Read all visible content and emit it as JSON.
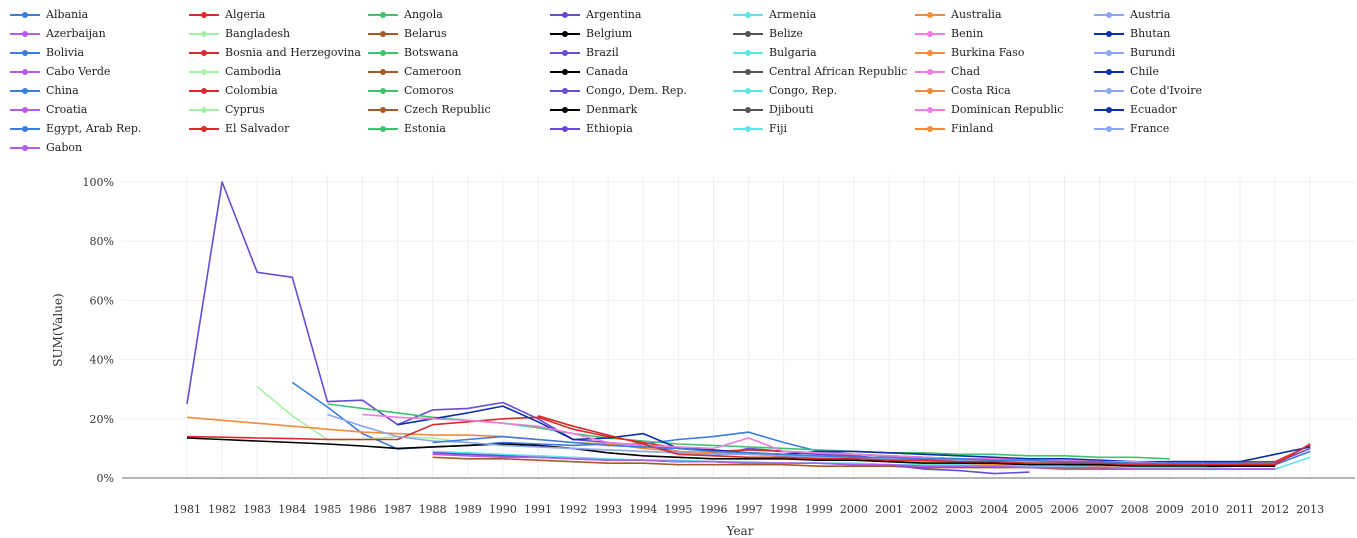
{
  "legend": {
    "items": [
      {
        "label": "Albania",
        "color": "#3b7ddd"
      },
      {
        "label": "Algeria",
        "color": "#d92b2b"
      },
      {
        "label": "Angola",
        "color": "#3ec46d"
      },
      {
        "label": "Argentina",
        "color": "#6a4bd6"
      },
      {
        "label": "Armenia",
        "color": "#5ee6e6"
      },
      {
        "label": "Australia",
        "color": "#f08c3a"
      },
      {
        "label": "Austria",
        "color": "#8aa8f0"
      },
      {
        "label": "Azerbaijan",
        "color": "#b35ce8"
      },
      {
        "label": "Bangladesh",
        "color": "#a8f0a8"
      },
      {
        "label": "Belarus",
        "color": "#a65a2a"
      },
      {
        "label": "Belgium",
        "color": "#000000"
      },
      {
        "label": "Belize",
        "color": "#555555"
      },
      {
        "label": "Benin",
        "color": "#f07de0"
      },
      {
        "label": "Bhutan",
        "color": "#0a2fa8"
      },
      {
        "label": "Bolivia",
        "color": "#3b7ddd"
      },
      {
        "label": "Bosnia and Herzegovina",
        "color": "#d92b2b"
      },
      {
        "label": "Botswana",
        "color": "#3ec46d"
      },
      {
        "label": "Brazil",
        "color": "#6a4bd6"
      },
      {
        "label": "Bulgaria",
        "color": "#5ee6e6"
      },
      {
        "label": "Burkina Faso",
        "color": "#f08c3a"
      },
      {
        "label": "Burundi",
        "color": "#8aa8f0"
      },
      {
        "label": "Cabo Verde",
        "color": "#b35ce8"
      },
      {
        "label": "Cambodia",
        "color": "#a8f0a8"
      },
      {
        "label": "Cameroon",
        "color": "#a65a2a"
      },
      {
        "label": "Canada",
        "color": "#000000"
      },
      {
        "label": "Central African Republic",
        "color": "#555555"
      },
      {
        "label": "Chad",
        "color": "#f07de0"
      },
      {
        "label": "Chile",
        "color": "#0a2fa8"
      },
      {
        "label": "China",
        "color": "#3b7ddd"
      },
      {
        "label": "Colombia",
        "color": "#d92b2b"
      },
      {
        "label": "Comoros",
        "color": "#3ec46d"
      },
      {
        "label": "Congo, Dem. Rep.",
        "color": "#6a4bd6"
      },
      {
        "label": "Congo, Rep.",
        "color": "#5ee6e6"
      },
      {
        "label": "Costa Rica",
        "color": "#f08c3a"
      },
      {
        "label": "Cote d'Ivoire",
        "color": "#8aa8f0"
      },
      {
        "label": "Croatia",
        "color": "#b35ce8"
      },
      {
        "label": "Cyprus",
        "color": "#a8f0a8"
      },
      {
        "label": "Czech Republic",
        "color": "#a65a2a"
      },
      {
        "label": "Denmark",
        "color": "#000000"
      },
      {
        "label": "Djibouti",
        "color": "#555555"
      },
      {
        "label": "Dominican Republic",
        "color": "#f07de0"
      },
      {
        "label": "Ecuador",
        "color": "#0a2fa8"
      },
      {
        "label": "Egypt, Arab Rep.",
        "color": "#3b7ddd"
      },
      {
        "label": "El Salvador",
        "color": "#d92b2b"
      },
      {
        "label": "Estonia",
        "color": "#3ec46d"
      },
      {
        "label": "Ethiopia",
        "color": "#6a4bd6"
      },
      {
        "label": "Fiji",
        "color": "#5ee6e6"
      },
      {
        "label": "Finland",
        "color": "#f08c3a"
      },
      {
        "label": "France",
        "color": "#8aa8f0"
      },
      {
        "label": "Gabon",
        "color": "#b35ce8"
      }
    ]
  },
  "chart_data": {
    "type": "line",
    "xlabel": "Year",
    "ylabel": "SUM(Value)",
    "ylim": [
      0,
      100
    ],
    "yticks": [
      "0%",
      "20%",
      "40%",
      "60%",
      "80%",
      "100%"
    ],
    "x": [
      1981,
      1982,
      1983,
      1984,
      1985,
      1986,
      1987,
      1988,
      1989,
      1990,
      1991,
      1992,
      1993,
      1994,
      1995,
      1996,
      1997,
      1998,
      1999,
      2000,
      2001,
      2002,
      2003,
      2004,
      2005,
      2006,
      2007,
      2008,
      2009,
      2010,
      2011,
      2012,
      2013
    ],
    "grid": true,
    "series": [
      {
        "name": "Argentina",
        "color": "#6a4bd6",
        "values": [
          25,
          100,
          69.5,
          67.8,
          25.8,
          26.3,
          18,
          23,
          23.5,
          25.5,
          20,
          13,
          12,
          11,
          9,
          7.5,
          10,
          9,
          8,
          7.5,
          6.5,
          6,
          5.5,
          5,
          5,
          5.5,
          5,
          4.5,
          4.5,
          5,
          5,
          5,
          10
        ]
      },
      {
        "name": "Bolivia",
        "color": "#3b7ddd",
        "values": [
          12.5,
          null,
          null,
          32.3,
          24,
          15,
          9.8,
          10.5,
          11,
          12,
          11.5,
          11,
          11.5,
          11.5,
          13,
          14,
          15.5,
          12,
          9,
          8,
          7.5,
          7,
          6.5,
          6,
          5.5,
          5,
          4.5,
          4,
          4,
          4.5,
          4.5,
          4.5,
          9
        ]
      },
      {
        "name": "Bangladesh",
        "color": "#a8f0a8",
        "values": [
          null,
          null,
          30.8,
          21,
          13,
          13,
          14,
          13.5,
          12,
          11,
          10.5,
          10,
          9.5,
          9,
          8.5,
          8,
          8,
          7.5,
          7,
          7,
          6.5,
          6,
          6,
          5.5,
          5.5,
          5.5,
          5,
          5,
          5,
          5,
          5,
          5,
          null
        ]
      },
      {
        "name": "Australia",
        "color": "#f08c3a",
        "values": [
          20.5,
          19.5,
          18.5,
          17.5,
          16.5,
          15.5,
          15,
          14.5,
          14.5,
          14,
          13,
          12,
          11.5,
          10,
          9,
          8.5,
          8,
          7.5,
          7,
          6.5,
          6,
          5.5,
          5,
          4.5,
          4.5,
          4,
          4,
          3.5,
          3.5,
          3.5,
          3,
          3,
          null
        ]
      },
      {
        "name": "Angola",
        "color": "#3ec46d",
        "values": [
          null,
          null,
          null,
          null,
          25,
          23.5,
          22,
          20.5,
          19.5,
          18.5,
          17,
          15,
          13.5,
          12.5,
          11.5,
          11,
          10.5,
          10,
          9.5,
          9,
          8.5,
          8.5,
          8,
          8,
          7.5,
          7.5,
          7,
          7,
          6.5,
          null,
          null,
          null,
          null
        ]
      },
      {
        "name": "Algeria",
        "color": "#d92b2b",
        "values": [
          14,
          13.8,
          13.5,
          13.3,
          13,
          13,
          13,
          18,
          19,
          20,
          20.5,
          16.5,
          14,
          12,
          10,
          9,
          9.5,
          9,
          8.5,
          8,
          7.5,
          7,
          6.5,
          6,
          6,
          6,
          5.5,
          5,
          5.5,
          5.5,
          5.5,
          5.5,
          11
        ]
      },
      {
        "name": "Belgium",
        "color": "#000000",
        "values": [
          13.5,
          13,
          12.5,
          12,
          11.5,
          10.8,
          10,
          10.5,
          11,
          11.5,
          11,
          10,
          8.5,
          7.5,
          7,
          6.5,
          6.5,
          6.5,
          6,
          6,
          5.5,
          5,
          5,
          5,
          4.5,
          4.5,
          4.5,
          4,
          4,
          4,
          4,
          4,
          null
        ]
      },
      {
        "name": "Chile",
        "color": "#0a2fa8",
        "values": [
          null,
          null,
          null,
          null,
          null,
          null,
          18,
          20,
          22,
          24.3,
          19,
          13,
          13.5,
          15,
          10,
          9.5,
          8.5,
          8,
          9,
          9,
          8.5,
          8,
          7.5,
          7,
          6.5,
          6.5,
          6,
          5.5,
          5.5,
          5.5,
          5.5,
          8,
          10.5
        ]
      },
      {
        "name": "Chad",
        "color": "#f07de0",
        "values": [
          null,
          null,
          null,
          null,
          null,
          21.5,
          20.5,
          20,
          19.5,
          18.5,
          17.5,
          15,
          12,
          11,
          10.5,
          10,
          13.5,
          9,
          8.5,
          8,
          7.5,
          7,
          6.5,
          6.5,
          6,
          6,
          5.5,
          5.5,
          5,
          5,
          5,
          5,
          null
        ]
      },
      {
        "name": "Cote d'Ivoire",
        "color": "#8aa8f0",
        "values": [
          null,
          null,
          null,
          null,
          21.5,
          17.5,
          14,
          12.5,
          12,
          11,
          10.5,
          10,
          9.5,
          9,
          8.5,
          8,
          8,
          7.5,
          7,
          7,
          6.5,
          6.5,
          6,
          6,
          5.5,
          5.5,
          5.5,
          5,
          5,
          5,
          4.5,
          4.5,
          null
        ]
      },
      {
        "name": "Cameroon",
        "color": "#a65a2a",
        "values": [
          null,
          null,
          null,
          null,
          null,
          null,
          null,
          7,
          6.5,
          6.5,
          6,
          5.5,
          5,
          5,
          4.5,
          4.5,
          4.5,
          4.5,
          4,
          4,
          4,
          3.5,
          3.5,
          3.5,
          3.5,
          3,
          3,
          3,
          3,
          3,
          3,
          3,
          null
        ]
      },
      {
        "name": "Congo, Rep.",
        "color": "#5ee6e6",
        "values": [
          null,
          null,
          null,
          null,
          null,
          null,
          null,
          9,
          8.5,
          8,
          7.5,
          7,
          6.5,
          6,
          6,
          5.5,
          5.5,
          5,
          5,
          5,
          4.5,
          4.5,
          4.5,
          4,
          4,
          4,
          3.5,
          3.5,
          3.5,
          3.5,
          3,
          3,
          7
        ]
      },
      {
        "name": "Congo, Dem. Rep.",
        "color": "#6a4bd6",
        "values": [
          null,
          null,
          null,
          null,
          null,
          null,
          null,
          8.5,
          8,
          7.5,
          7,
          6.5,
          6,
          6,
          5.5,
          5.5,
          5,
          5,
          5,
          4.5,
          4.5,
          3,
          2.5,
          1.5,
          2,
          null,
          null,
          null,
          null,
          null,
          null,
          null,
          null
        ]
      },
      {
        "name": "Croatia",
        "color": "#b35ce8",
        "values": [
          null,
          null,
          null,
          null,
          null,
          null,
          null,
          8,
          7.5,
          7,
          7,
          6.5,
          6,
          6,
          5.5,
          5.5,
          5,
          5,
          5,
          4.5,
          4.5,
          4,
          4,
          4,
          3.5,
          3.5,
          3.5,
          3,
          3,
          3,
          3,
          3,
          null
        ]
      },
      {
        "name": "Colombia",
        "color": "#d92b2b",
        "values": [
          null,
          null,
          null,
          null,
          null,
          null,
          null,
          null,
          null,
          null,
          21,
          17.5,
          14.5,
          11.5,
          8,
          7.5,
          7,
          7,
          6.5,
          6.5,
          6,
          6,
          5.5,
          5.5,
          5,
          5,
          5,
          4.5,
          4.5,
          4.5,
          4.5,
          4.5,
          11.5
        ]
      },
      {
        "name": "China",
        "color": "#3b7ddd",
        "values": [
          null,
          null,
          null,
          null,
          null,
          null,
          null,
          12,
          13,
          14,
          13,
          12,
          11,
          10.5,
          10,
          9,
          8.5,
          8,
          7.5,
          7,
          7,
          6.5,
          6.5,
          6,
          6,
          5.5,
          5.5,
          5,
          5,
          5,
          5,
          5,
          null
        ]
      }
    ]
  }
}
